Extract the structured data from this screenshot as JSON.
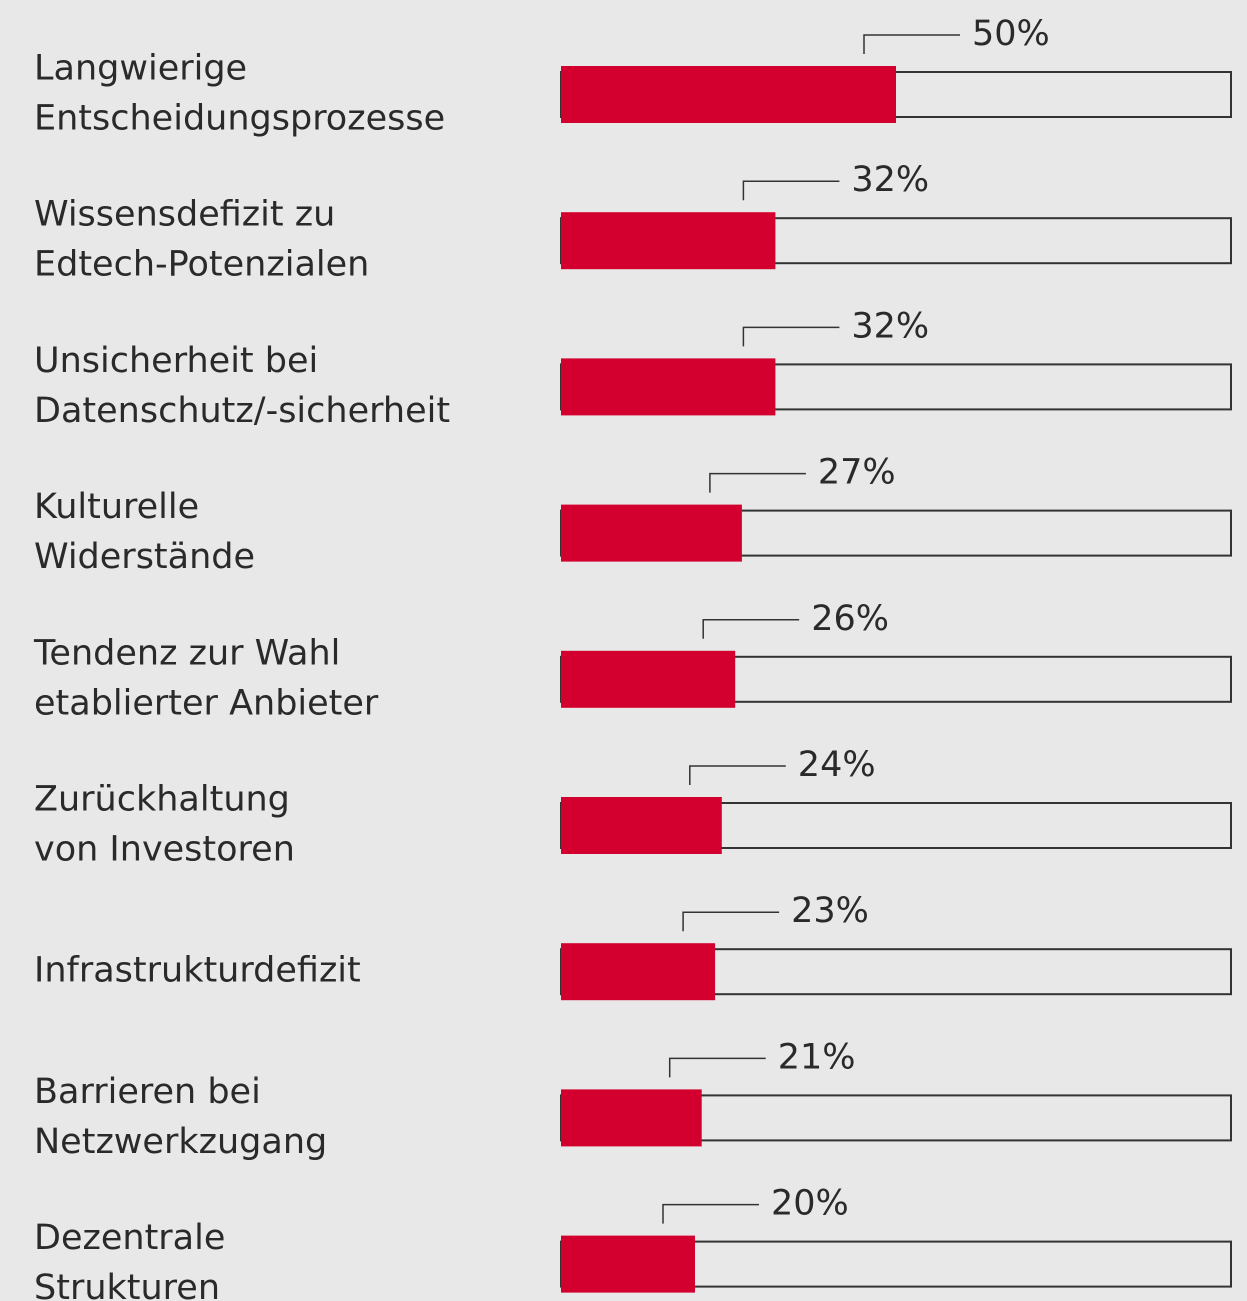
{
  "chart_data": {
    "type": "bar",
    "orientation": "horizontal",
    "categories": [
      "Langwierige\nEntscheidungsprozesse",
      "Wissensdefizit zu\nEdtech-Potenzialen",
      "Unsicherheit bei\nDatenschutz/-sicherheit",
      "Kulturelle\nWiderstände",
      "Tendenz zur Wahl\netablierter Anbieter",
      "Zurückhaltung\nvon Investoren",
      "Infrastrukturdefizit",
      "Barrieren bei\nNetzwerkzugang",
      "Dezentrale\nStrukturen"
    ],
    "values": [
      50,
      32,
      32,
      27,
      26,
      24,
      23,
      21,
      20
    ],
    "value_labels": [
      "50%",
      "32%",
      "32%",
      "27%",
      "26%",
      "24%",
      "23%",
      "21%",
      "20%"
    ],
    "color": "#d3002f",
    "xlim": [
      0,
      100
    ]
  }
}
